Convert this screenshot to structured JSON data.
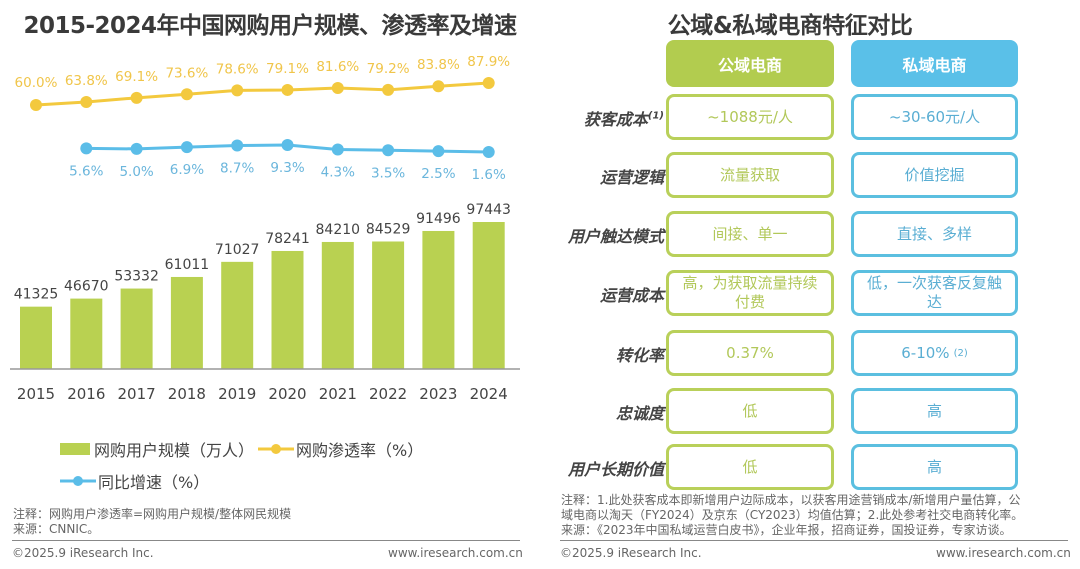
{
  "left": {
    "title": "2015-2024年中国网购用户规模、渗透率及增速",
    "legend": {
      "bars": "网购用户规模（万人）",
      "penetration": "网购渗透率（%）",
      "growth": "同比增速（%）"
    },
    "note": "注释：网购用户渗透率=网购用户规模/整体网民规模",
    "source": "来源：CNNIC。",
    "copyright": "©2025.9 iResearch Inc.",
    "website": "www.iresearch.com.cn"
  },
  "right": {
    "title": "公域&私域电商特征对比",
    "col_public": "公域电商",
    "col_private": "私域电商",
    "rows": [
      {
        "label": "获客成本",
        "sup": "(1)",
        "public": "~1088元/人",
        "private": "~30-60元/人",
        "private_sup": ""
      },
      {
        "label": "运营逻辑",
        "sup": "",
        "public": "流量获取",
        "private": "价值挖掘",
        "private_sup": ""
      },
      {
        "label": "用户触达模式",
        "sup": "",
        "public": "间接、单一",
        "private": "直接、多样",
        "private_sup": ""
      },
      {
        "label": "运营成本",
        "sup": "",
        "public": "高，为获取流量持续付费",
        "private": "低，一次获客反复触达",
        "private_sup": ""
      },
      {
        "label": "转化率",
        "sup": "",
        "public": "0.37%",
        "private": "6-10%",
        "private_sup": "(2)"
      },
      {
        "label": "忠诚度",
        "sup": "",
        "public": "低",
        "private": "高",
        "private_sup": ""
      },
      {
        "label": "用户长期价值",
        "sup": "",
        "public": "低",
        "private": "高",
        "private_sup": ""
      }
    ],
    "note_line1": "注释：1.此处获客成本即新增用户边际成本，以获客用途营销成本/新增用户量估算，公",
    "note_line2": "域电商以淘天（FY2024）及京东（CY2023）均值估算；2.此处参考社交电商转化率。",
    "source": "来源：《2023年中国私域运营白皮书》，企业年报，招商证券，国投证券，专家访谈。",
    "copyright": "©2025.9 iResearch Inc.",
    "website": "www.iresearch.com.cn"
  },
  "colors": {
    "bar": "#b9d151",
    "penetration": "#f3c93e",
    "growth": "#5bbde8",
    "public": "#b2cc4f",
    "private": "#5ac0e8"
  },
  "chart_data": {
    "type": "bar+line",
    "title": "2015-2024年中国网购用户规模、渗透率及增速",
    "categories": [
      "2015",
      "2016",
      "2017",
      "2018",
      "2019",
      "2020",
      "2021",
      "2022",
      "2023",
      "2024"
    ],
    "series": [
      {
        "name": "网购用户规模（万人）",
        "type": "bar",
        "values": [
          41325,
          46670,
          53332,
          61011,
          71027,
          78241,
          84210,
          84529,
          91496,
          97443
        ],
        "labels": [
          "41325",
          "46670",
          "53332",
          "61011",
          "71027",
          "78241",
          "84210",
          "84529",
          "91496",
          "97443"
        ]
      },
      {
        "name": "网购渗透率（%）",
        "type": "line",
        "values": [
          60.0,
          63.8,
          69.1,
          73.6,
          78.6,
          79.1,
          81.6,
          79.2,
          83.8,
          87.9
        ],
        "labels": [
          "60.0%",
          "63.8%",
          "69.1%",
          "73.6%",
          "78.6%",
          "79.1%",
          "81.6%",
          "79.2%",
          "83.8%",
          "87.9%"
        ]
      },
      {
        "name": "同比增速（%）",
        "type": "line",
        "values": [
          null,
          5.6,
          5.0,
          6.9,
          8.7,
          9.3,
          4.3,
          3.5,
          2.5,
          1.6
        ],
        "labels": [
          "",
          "5.6%",
          "5.0%",
          "6.9%",
          "8.7%",
          "9.3%",
          "4.3%",
          "3.5%",
          "2.5%",
          "1.6%"
        ]
      }
    ],
    "legend": "bottom",
    "grid": false
  }
}
